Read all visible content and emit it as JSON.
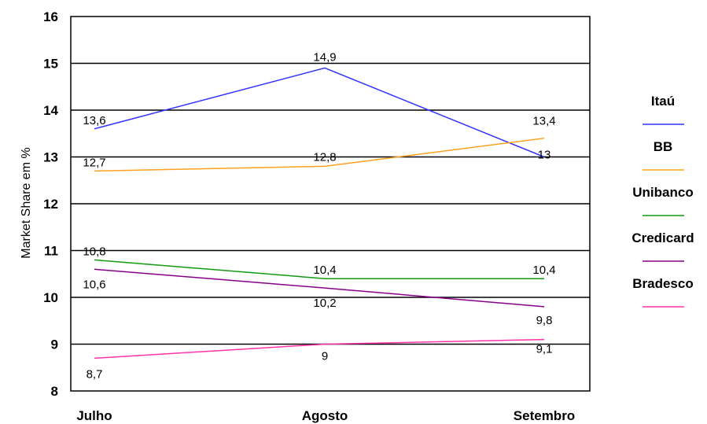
{
  "chart_data": {
    "type": "line",
    "title": "",
    "xlabel": "",
    "ylabel": "Market Share em %",
    "categories": [
      "Julho",
      "Agosto",
      "Setembro"
    ],
    "ylim": [
      8,
      16
    ],
    "yticks": [
      "8",
      "9",
      "10",
      "11",
      "12",
      "13",
      "14",
      "15",
      "16"
    ],
    "grid": "horizontal",
    "legend_position": "right",
    "series": [
      {
        "name": "Itaú",
        "color": "#3333ff",
        "values": [
          13.6,
          14.9,
          13.0
        ],
        "labels": [
          "13,6",
          "14,9",
          "13"
        ]
      },
      {
        "name": "BB",
        "color": "#ffa020",
        "values": [
          12.7,
          12.8,
          13.4
        ],
        "labels": [
          "12,7",
          "12,8",
          "13,4"
        ]
      },
      {
        "name": "Unibanco",
        "color": "#119911",
        "values": [
          10.8,
          10.4,
          10.4
        ],
        "labels": [
          "10,8",
          "10,4",
          "10,4"
        ]
      },
      {
        "name": "Credicard",
        "color": "#880088",
        "values": [
          10.6,
          10.2,
          9.8
        ],
        "labels": [
          "10,6",
          "10,2",
          "9,8"
        ]
      },
      {
        "name": "Bradesco",
        "color": "#ff33aa",
        "values": [
          8.7,
          9.0,
          9.1
        ],
        "labels": [
          "8,7",
          "9",
          "9,1"
        ]
      }
    ]
  }
}
